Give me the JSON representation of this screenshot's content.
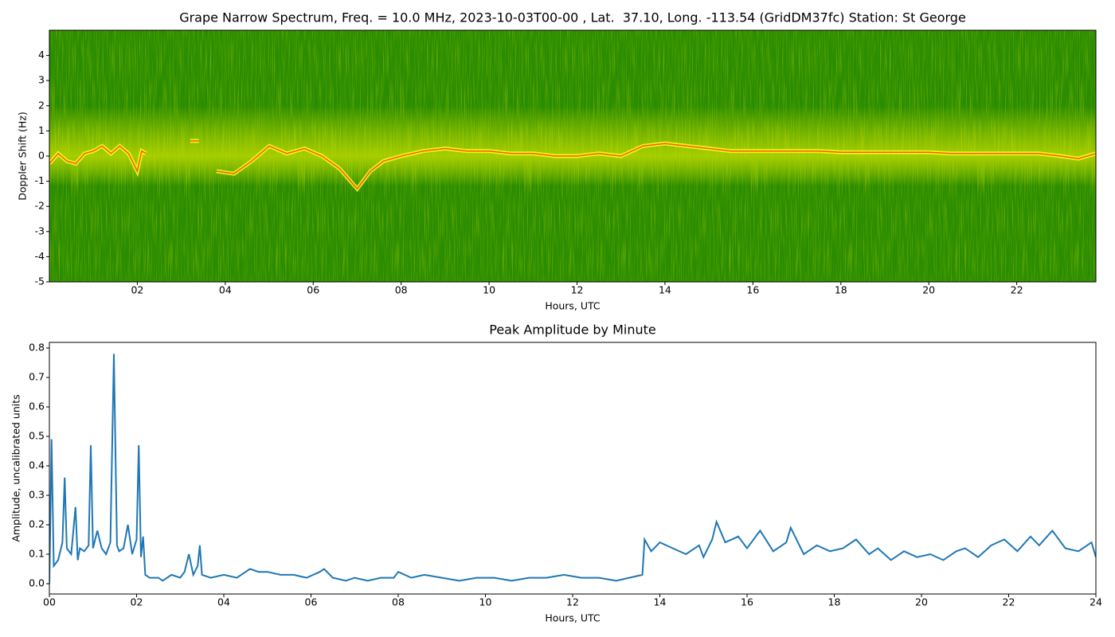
{
  "chart_data": [
    {
      "type": "spectrogram",
      "title": "Grape Narrow Spectrum, Freq. = 10.0 MHz, 2023-10-03T00-00 , Lat.  37.10, Long. -113.54 (GridDM37fc) Station: St George",
      "x_label": "Hours, UTC",
      "y_label": "Doppler Shift (Hz)",
      "xlim": [
        0,
        23.8
      ],
      "ylim": [
        -5,
        5
      ],
      "xticks": [
        {
          "value": 2,
          "label": "02"
        },
        {
          "value": 4,
          "label": "04"
        },
        {
          "value": 6,
          "label": "06"
        },
        {
          "value": 8,
          "label": "08"
        },
        {
          "value": 10,
          "label": "10"
        },
        {
          "value": 12,
          "label": "12"
        },
        {
          "value": 14,
          "label": "14"
        },
        {
          "value": 16,
          "label": "16"
        },
        {
          "value": 18,
          "label": "18"
        },
        {
          "value": 20,
          "label": "20"
        },
        {
          "value": 22,
          "label": "22"
        }
      ],
      "yticks": [
        -5,
        -4,
        -3,
        -2,
        -1,
        0,
        1,
        2,
        3,
        4
      ],
      "color": "#ff5a10",
      "x": [
        0,
        0.2,
        0.4,
        0.6,
        0.8,
        1.0,
        1.2,
        1.4,
        1.6,
        1.8,
        2.0,
        2.1,
        2.2,
        null,
        3.2,
        3.4,
        null,
        3.8,
        4.2,
        4.6,
        5.0,
        5.4,
        5.8,
        6.2,
        6.6,
        7.0,
        7.3,
        7.6,
        8.0,
        8.5,
        9.0,
        9.5,
        10.0,
        10.5,
        11.0,
        11.5,
        12.0,
        12.5,
        13.0,
        13.5,
        14.0,
        14.5,
        15.0,
        15.5,
        16.0,
        16.5,
        17.0,
        17.5,
        18.0,
        18.5,
        19.0,
        19.5,
        20.0,
        20.5,
        21.0,
        21.5,
        22.0,
        22.5,
        23.0,
        23.4,
        23.8
      ],
      "values": [
        -0.3,
        0.1,
        -0.2,
        -0.3,
        0.1,
        0.2,
        0.4,
        0.1,
        0.4,
        0.1,
        -0.6,
        0.2,
        0.1,
        null,
        0.6,
        0.6,
        null,
        -0.6,
        -0.7,
        -0.2,
        0.4,
        0.1,
        0.3,
        0.0,
        -0.5,
        -1.3,
        -0.6,
        -0.2,
        0.0,
        0.2,
        0.3,
        0.2,
        0.2,
        0.1,
        0.1,
        0.0,
        0.0,
        0.1,
        0.0,
        0.4,
        0.5,
        0.4,
        0.3,
        0.2,
        0.2,
        0.2,
        0.2,
        0.2,
        0.15,
        0.15,
        0.15,
        0.15,
        0.15,
        0.1,
        0.1,
        0.1,
        0.1,
        0.1,
        0.0,
        -0.1,
        0.1
      ]
    },
    {
      "type": "line",
      "title": "Peak Amplitude by Minute",
      "x_label": "Hours, UTC",
      "y_label": "Amplitude, uncalibrated units",
      "xlim": [
        0,
        24
      ],
      "ylim": [
        -0.035,
        0.819
      ],
      "xticks": [
        {
          "value": 0,
          "label": "00"
        },
        {
          "value": 2,
          "label": "02"
        },
        {
          "value": 4,
          "label": "04"
        },
        {
          "value": 6,
          "label": "06"
        },
        {
          "value": 8,
          "label": "08"
        },
        {
          "value": 10,
          "label": "10"
        },
        {
          "value": 12,
          "label": "12"
        },
        {
          "value": 14,
          "label": "14"
        },
        {
          "value": 16,
          "label": "16"
        },
        {
          "value": 18,
          "label": "18"
        },
        {
          "value": 20,
          "label": "20"
        },
        {
          "value": 22,
          "label": "22"
        },
        {
          "value": 24,
          "label": "24"
        }
      ],
      "yticks": [
        {
          "value": 0,
          "label": "0.0"
        },
        {
          "value": 0.1,
          "label": "0.1"
        },
        {
          "value": 0.2,
          "label": "0.2"
        },
        {
          "value": 0.3,
          "label": "0.3"
        },
        {
          "value": 0.4,
          "label": "0.4"
        },
        {
          "value": 0.5,
          "label": "0.5"
        },
        {
          "value": 0.6,
          "label": "0.6"
        },
        {
          "value": 0.7,
          "label": "0.7"
        },
        {
          "value": 0.8,
          "label": "0.8"
        }
      ],
      "color": "#1f77b4",
      "x": [
        0,
        0.05,
        0.1,
        0.2,
        0.3,
        0.35,
        0.4,
        0.5,
        0.6,
        0.65,
        0.7,
        0.8,
        0.9,
        0.95,
        1.0,
        1.1,
        1.2,
        1.3,
        1.4,
        1.48,
        1.55,
        1.6,
        1.7,
        1.8,
        1.9,
        2.0,
        2.05,
        2.1,
        2.15,
        2.2,
        2.3,
        2.5,
        2.6,
        2.8,
        3.0,
        3.1,
        3.2,
        3.3,
        3.4,
        3.45,
        3.5,
        3.7,
        4.0,
        4.3,
        4.6,
        4.8,
        5.0,
        5.3,
        5.6,
        5.9,
        6.2,
        6.3,
        6.5,
        6.8,
        7.0,
        7.3,
        7.6,
        7.9,
        8.0,
        8.3,
        8.6,
        9.0,
        9.4,
        9.8,
        10.2,
        10.6,
        11.0,
        11.4,
        11.8,
        12.2,
        12.6,
        13.0,
        13.3,
        13.6,
        13.65,
        13.8,
        14.0,
        14.3,
        14.6,
        14.9,
        15.0,
        15.2,
        15.3,
        15.5,
        15.8,
        16.0,
        16.3,
        16.6,
        16.9,
        17.0,
        17.3,
        17.6,
        17.9,
        18.2,
        18.5,
        18.8,
        19.0,
        19.3,
        19.6,
        19.9,
        20.2,
        20.5,
        20.8,
        21.0,
        21.3,
        21.6,
        21.9,
        22.2,
        22.5,
        22.7,
        23.0,
        23.3,
        23.6,
        23.9,
        24.0
      ],
      "values": [
        0.0,
        0.49,
        0.06,
        0.08,
        0.14,
        0.36,
        0.12,
        0.1,
        0.26,
        0.08,
        0.12,
        0.11,
        0.13,
        0.47,
        0.12,
        0.18,
        0.12,
        0.1,
        0.14,
        0.78,
        0.13,
        0.11,
        0.12,
        0.2,
        0.1,
        0.15,
        0.47,
        0.09,
        0.16,
        0.03,
        0.02,
        0.02,
        0.01,
        0.03,
        0.02,
        0.04,
        0.1,
        0.03,
        0.06,
        0.13,
        0.03,
        0.02,
        0.03,
        0.02,
        0.05,
        0.04,
        0.04,
        0.03,
        0.03,
        0.02,
        0.04,
        0.05,
        0.02,
        0.01,
        0.02,
        0.01,
        0.02,
        0.02,
        0.04,
        0.02,
        0.03,
        0.02,
        0.01,
        0.02,
        0.02,
        0.01,
        0.02,
        0.02,
        0.03,
        0.02,
        0.02,
        0.01,
        0.02,
        0.03,
        0.15,
        0.11,
        0.14,
        0.12,
        0.1,
        0.13,
        0.09,
        0.15,
        0.21,
        0.14,
        0.16,
        0.12,
        0.18,
        0.11,
        0.14,
        0.19,
        0.1,
        0.13,
        0.11,
        0.12,
        0.15,
        0.1,
        0.12,
        0.08,
        0.11,
        0.09,
        0.1,
        0.08,
        0.11,
        0.12,
        0.09,
        0.13,
        0.15,
        0.11,
        0.16,
        0.13,
        0.18,
        0.12,
        0.11,
        0.14,
        0.09
      ]
    }
  ]
}
